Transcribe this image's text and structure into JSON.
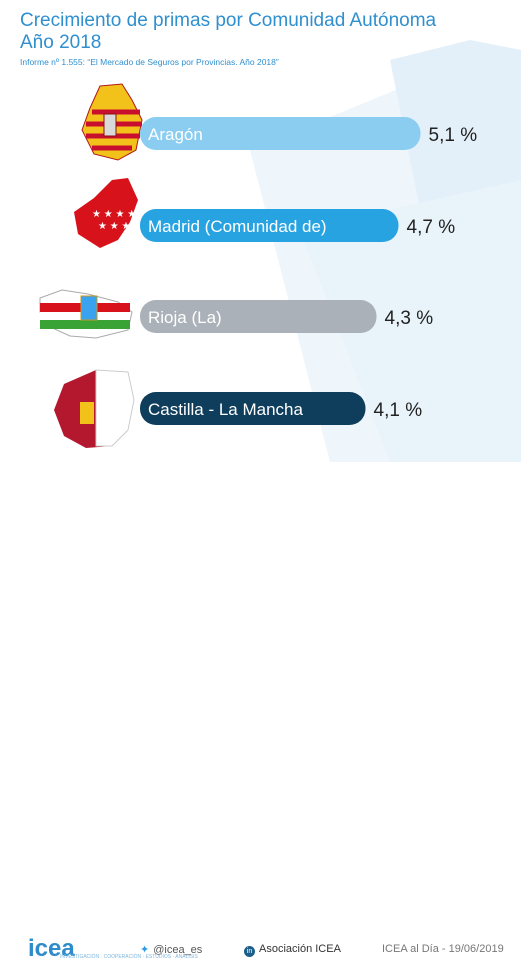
{
  "title_line1": "Crecimiento de primas por Comunidad Autónoma",
  "title_line2": "Año 2018",
  "subtitle": "Informe nº 1.555: “El Mercado de Seguros por Provincias. Año 2018”",
  "chart_data": {
    "type": "bar",
    "orientation": "horizontal",
    "categories": [
      "Aragón",
      "Madrid (Comunidad de)",
      "Rioja (La)",
      "Castilla - La Mancha"
    ],
    "values": [
      5.1,
      4.7,
      4.3,
      4.1
    ],
    "value_labels": [
      "5,1 %",
      "4,7 %",
      "4,3 %",
      "4,1 %"
    ],
    "colors": [
      "#8acdf1",
      "#27a3e2",
      "#aab1b8",
      "#0e3e5c"
    ]
  },
  "footer": {
    "logo": "icea",
    "logo_tagline": "INVESTIGACIÓN · COOPERACIÓN · ESTUDIOS · ANÁLISIS",
    "twitter": "@icea_es",
    "linkedin": "Asociación ICEA",
    "source_date": "ICEA al Día - 19/06/2019"
  },
  "icons": [
    "aragon-flag-icon",
    "madrid-flag-icon",
    "rioja-flag-icon",
    "castilla-la-mancha-flag-icon",
    "twitter-icon",
    "linkedin-icon"
  ]
}
